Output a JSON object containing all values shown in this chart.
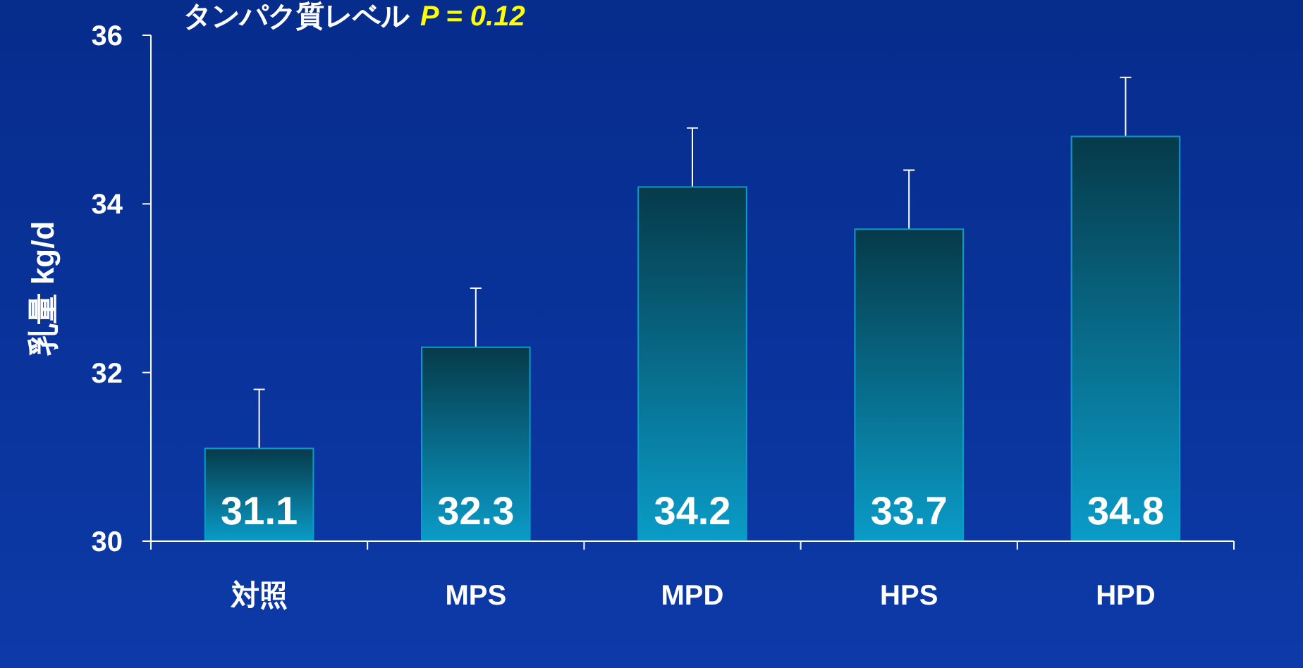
{
  "chart_data": {
    "type": "bar",
    "title": "タンパク質レベル",
    "annotations": [
      "P = 0.12"
    ],
    "ylabel": "乳量 kg/d",
    "categories": [
      "対照",
      "MPS",
      "MPD",
      "HPS",
      "HPD"
    ],
    "values": [
      31.1,
      32.3,
      34.2,
      33.7,
      34.8
    ],
    "errors": [
      [
        31.1,
        31.8
      ],
      [
        32.3,
        33.0
      ],
      [
        34.2,
        34.9
      ],
      [
        33.7,
        34.4
      ],
      [
        34.8,
        35.5
      ]
    ],
    "color": "#0a9cc8",
    "ylim": [
      30,
      36
    ],
    "yticks": [
      30,
      32,
      34,
      36
    ],
    "data_labels": true,
    "grid": false
  }
}
